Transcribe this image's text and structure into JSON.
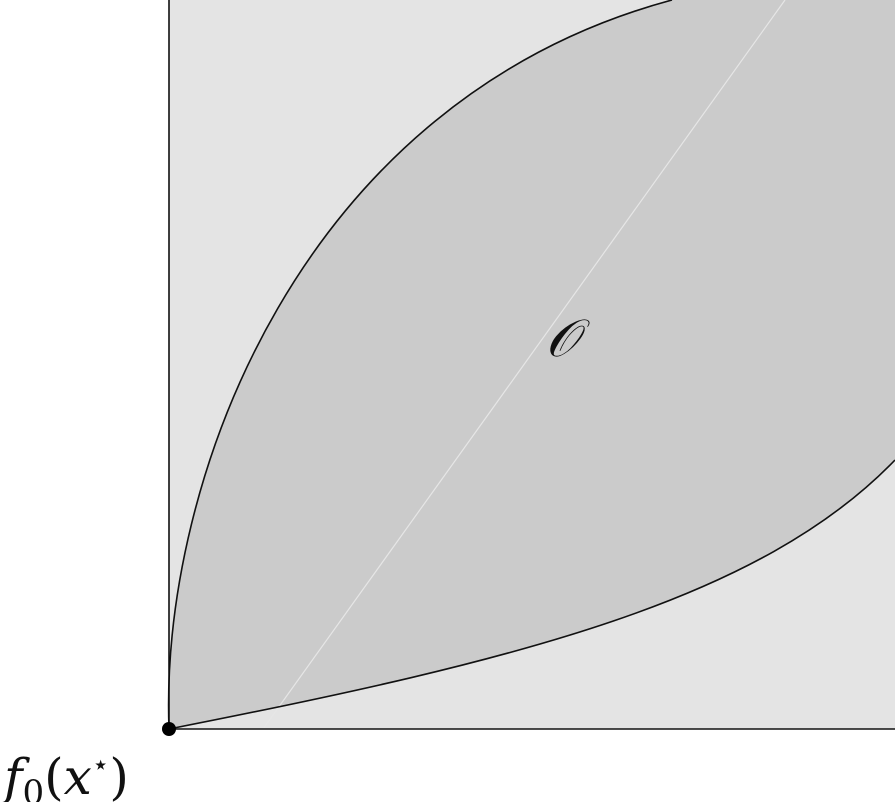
{
  "diagram": {
    "region_label": "𝒪",
    "origin_label": {
      "func": "f",
      "sub": "0",
      "open": "(",
      "var": "x",
      "sup": "⋆",
      "close": ")"
    },
    "colors": {
      "background": "#ffffff",
      "outer_quadrant": "#e4e4e4",
      "inner_region": "#cbcbcb",
      "boundary": "#111111",
      "diagonal": "#e2e2e2",
      "point": "#000000"
    }
  }
}
